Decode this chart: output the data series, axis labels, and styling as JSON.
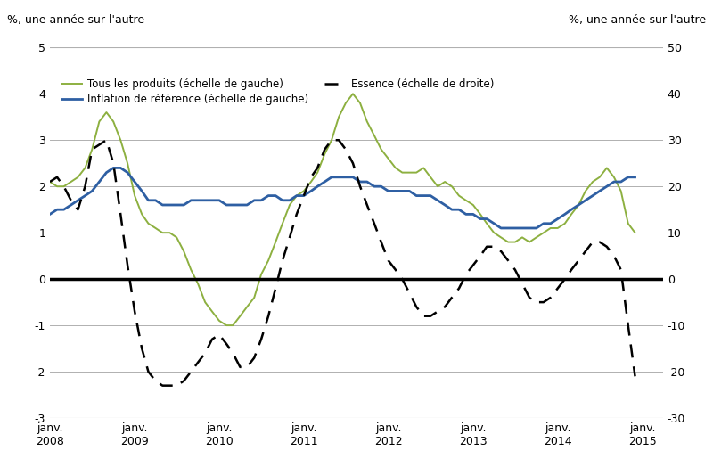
{
  "ylabel_left": "%, une année sur l'autre",
  "ylabel_right": "%, une année sur l'autre",
  "ylim_left": [
    -3,
    5
  ],
  "ylim_right": [
    -30,
    50
  ],
  "yticks_left": [
    -3,
    -2,
    -1,
    0,
    1,
    2,
    3,
    4,
    5
  ],
  "yticks_right": [
    -30,
    -20,
    -10,
    0,
    10,
    20,
    30,
    40,
    50
  ],
  "color_tous": "#8db040",
  "color_inflation": "#2e5fa3",
  "color_essence": "#000000",
  "legend_entries": [
    "Tous les produits (échelle de gauche)",
    "Inflation de référence (échelle de gauche)",
    "Essence (échelle de droite)"
  ],
  "tous_les_produits": [
    2.1,
    2.0,
    2.0,
    2.1,
    2.2,
    2.4,
    2.8,
    3.4,
    3.6,
    3.4,
    3.0,
    2.5,
    1.8,
    1.4,
    1.2,
    1.1,
    1.0,
    1.0,
    0.9,
    0.6,
    0.2,
    -0.1,
    -0.5,
    -0.7,
    -0.9,
    -1.0,
    -1.0,
    -0.8,
    -0.6,
    -0.4,
    0.1,
    0.4,
    0.8,
    1.2,
    1.6,
    1.8,
    1.9,
    2.1,
    2.3,
    2.7,
    3.0,
    3.5,
    3.8,
    4.0,
    3.8,
    3.4,
    3.1,
    2.8,
    2.6,
    2.4,
    2.3,
    2.3,
    2.3,
    2.4,
    2.2,
    2.0,
    2.1,
    2.0,
    1.8,
    1.7,
    1.6,
    1.4,
    1.2,
    1.0,
    0.9,
    0.8,
    0.8,
    0.9,
    0.8,
    0.9,
    1.0,
    1.1,
    1.1,
    1.2,
    1.4,
    1.6,
    1.9,
    2.1,
    2.2,
    2.4,
    2.2,
    1.9,
    1.2,
    1.0
  ],
  "inflation_ref": [
    1.4,
    1.5,
    1.5,
    1.6,
    1.7,
    1.8,
    1.9,
    2.1,
    2.3,
    2.4,
    2.4,
    2.3,
    2.1,
    1.9,
    1.7,
    1.7,
    1.6,
    1.6,
    1.6,
    1.6,
    1.7,
    1.7,
    1.7,
    1.7,
    1.7,
    1.6,
    1.6,
    1.6,
    1.6,
    1.7,
    1.7,
    1.8,
    1.8,
    1.7,
    1.7,
    1.8,
    1.8,
    1.9,
    2.0,
    2.1,
    2.2,
    2.2,
    2.2,
    2.2,
    2.1,
    2.1,
    2.0,
    2.0,
    1.9,
    1.9,
    1.9,
    1.9,
    1.8,
    1.8,
    1.8,
    1.7,
    1.6,
    1.5,
    1.5,
    1.4,
    1.4,
    1.3,
    1.3,
    1.2,
    1.1,
    1.1,
    1.1,
    1.1,
    1.1,
    1.1,
    1.2,
    1.2,
    1.3,
    1.4,
    1.5,
    1.6,
    1.7,
    1.8,
    1.9,
    2.0,
    2.1,
    2.1,
    2.2,
    2.2
  ],
  "essence": [
    21,
    22,
    20,
    17,
    15,
    20,
    28,
    29,
    30,
    25,
    14,
    3,
    -7,
    -15,
    -20,
    -22,
    -23,
    -23,
    -23,
    -22,
    -20,
    -18,
    -16,
    -13,
    -12,
    -14,
    -16,
    -19,
    -19,
    -17,
    -13,
    -8,
    -2,
    4,
    9,
    14,
    18,
    22,
    24,
    28,
    30,
    30,
    28,
    25,
    20,
    16,
    12,
    8,
    4,
    2,
    0,
    -3,
    -6,
    -8,
    -8,
    -7,
    -6,
    -4,
    -2,
    1,
    3,
    5,
    7,
    7,
    6,
    4,
    2,
    -1,
    -4,
    -5,
    -5,
    -4,
    -2,
    0,
    2,
    4,
    6,
    8,
    8,
    7,
    5,
    2,
    -10,
    -21
  ]
}
